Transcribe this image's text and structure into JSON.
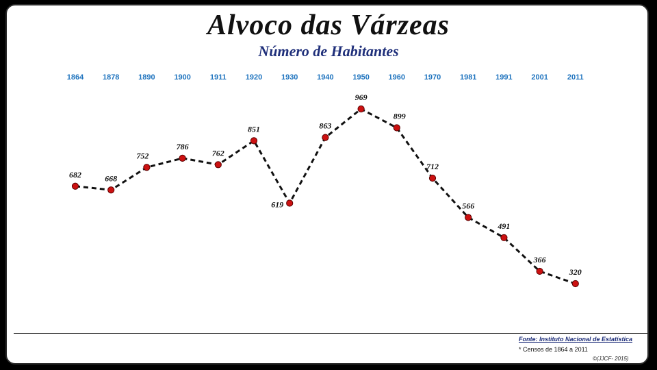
{
  "header": {
    "title": "Alvoco das Várzeas",
    "subtitle": "Número de Habitantes"
  },
  "chart_data": {
    "type": "line",
    "title": "Alvoco das Várzeas",
    "subtitle": "Número de Habitantes",
    "categories": [
      "1864",
      "1878",
      "1890",
      "1900",
      "1911",
      "1920",
      "1930",
      "1940",
      "1950",
      "1960",
      "1970",
      "1981",
      "1991",
      "2001",
      "2011"
    ],
    "series": [
      {
        "values": [
          682,
          668,
          752,
          786,
          762,
          851,
          619,
          863,
          969,
          899,
          712,
          566,
          491,
          366,
          320
        ]
      }
    ],
    "xlabel": "",
    "ylabel": "",
    "line_style": "dashed",
    "line_color": "#111111",
    "marker_color": "#cc1111",
    "tick_color": "#1e73be",
    "label_color": "#111111",
    "grid": false,
    "legend": "none"
  },
  "footer": {
    "source": "Fonte: Instituto Nacional de Estatística",
    "note": "* Censos de 1864 a 2011",
    "copyright": "©(JJCF- 2015)"
  }
}
